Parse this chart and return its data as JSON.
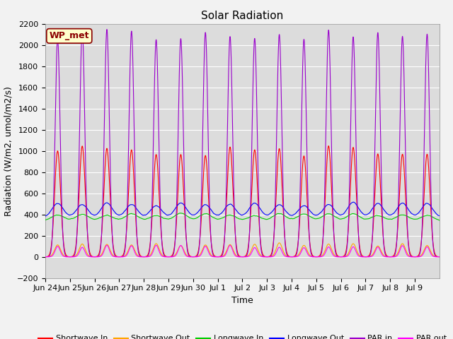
{
  "title": "Solar Radiation",
  "xlabel": "Time",
  "ylabel": "Radiation (W/m2, umol/m2/s)",
  "ylim": [
    -200,
    2200
  ],
  "yticks": [
    -200,
    0,
    200,
    400,
    600,
    800,
    1000,
    1200,
    1400,
    1600,
    1800,
    2000,
    2200
  ],
  "fig_bg": "#f2f2f2",
  "plot_bg": "#dcdcdc",
  "grid_color": "#ffffff",
  "annotation_text": "WP_met",
  "annotation_bg": "#ffffcc",
  "annotation_border": "#8B0000",
  "annotation_text_color": "#8B0000",
  "colors": {
    "shortwave_in": "#ff0000",
    "shortwave_out": "#ffa500",
    "longwave_in": "#00cc00",
    "longwave_out": "#0000ff",
    "par_in": "#9900cc",
    "par_out": "#ff00ff"
  },
  "legend_labels": [
    "Shortwave In",
    "Shortwave Out",
    "Longwave In",
    "Longwave Out",
    "PAR in",
    "PAR out"
  ],
  "num_days": 16,
  "shortwave_in_peak": 1000,
  "shortwave_out_peak": 130,
  "longwave_in_base": 340,
  "longwave_in_variation": 60,
  "longwave_out_base": 375,
  "longwave_out_peak": 125,
  "par_in_peak": 2100,
  "par_out_peak": 100,
  "x_tick_labels": [
    "Jun 24",
    "Jun 25",
    "Jun 26",
    "Jun 27",
    "Jun 28",
    "Jun 29",
    "Jun 30",
    "Jul 1",
    "Jul 2",
    "Jul 3",
    "Jul 4",
    "Jul 5",
    "Jul 6",
    "Jul 7",
    "Jul 8",
    "Jul 9"
  ],
  "title_fontsize": 11,
  "label_fontsize": 9,
  "tick_fontsize": 8,
  "legend_fontsize": 8
}
